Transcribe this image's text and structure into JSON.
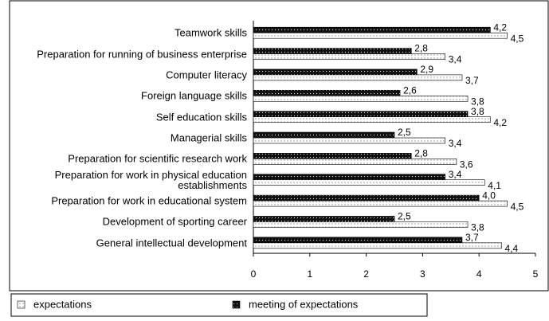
{
  "chart_data": {
    "type": "hbar",
    "categories": [
      "Teamwork skills",
      "Preparation for running of business enterprise",
      "Computer literacy",
      "Foreign language skills",
      "Self education skills",
      "Managerial skills",
      "Preparation for scientific research work",
      "Preparation for work in physical education establishments",
      "Preparation for work in educational system",
      "Development of sporting career",
      "General intellectual development"
    ],
    "series": [
      {
        "name": "expectations",
        "color": "#d0d0d0",
        "values": [
          4.5,
          3.4,
          3.7,
          3.8,
          4.2,
          3.4,
          3.6,
          4.1,
          4.5,
          3.8,
          4.4
        ],
        "value_labels": [
          "4,5",
          "3,4",
          "3,7",
          "3,8",
          "4,2",
          "3,4",
          "3,6",
          "4,1",
          "4,5",
          "3,8",
          "4,4"
        ]
      },
      {
        "name": "meeting of expectations",
        "color": "#111111",
        "values": [
          4.2,
          2.8,
          2.9,
          2.6,
          3.8,
          2.5,
          2.8,
          3.4,
          4.0,
          2.5,
          3.7
        ],
        "value_labels": [
          "4,2",
          "2,8",
          "2,9",
          "2,6",
          "3,8",
          "2,5",
          "2,8",
          "3,4",
          "4,0",
          "2,5",
          "3,7"
        ]
      }
    ],
    "xlim": [
      0,
      5
    ],
    "xticks": [
      0,
      1,
      2,
      3,
      4,
      5
    ],
    "legend": "bottom"
  }
}
